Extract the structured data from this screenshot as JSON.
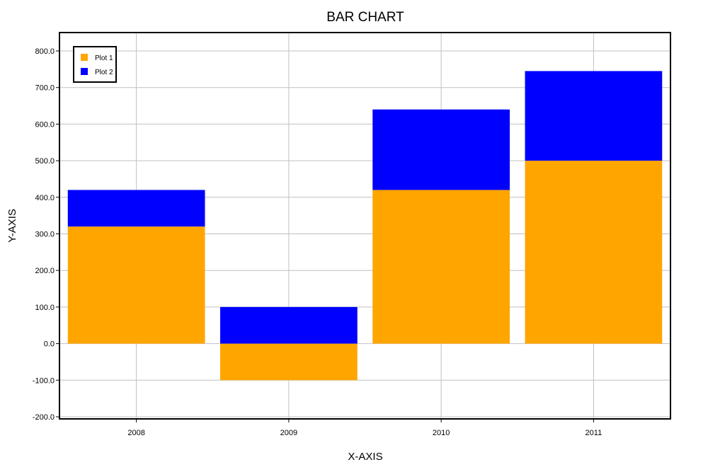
{
  "chart_data": {
    "type": "bar",
    "stacked": true,
    "title": "BAR CHART",
    "xlabel": "X-AXIS",
    "ylabel": "Y-AXIS",
    "categories": [
      "2008",
      "2009",
      "2010",
      "2011"
    ],
    "series": [
      {
        "name": "Plot 1",
        "color": "#ffa500",
        "values": [
          320,
          -100,
          420,
          500
        ]
      },
      {
        "name": "Plot 2",
        "color": "#0000ff",
        "values": [
          100,
          100,
          220,
          245
        ]
      }
    ],
    "ylim": [
      -200,
      800
    ],
    "yticks": [
      -200,
      -100,
      0,
      100,
      200,
      300,
      400,
      500,
      600,
      700,
      800
    ],
    "ytick_labels": [
      "-200.0",
      "-100.0",
      "0.0",
      "100.0",
      "200.0",
      "300.0",
      "400.0",
      "500.0",
      "600.0",
      "700.0",
      "800.0"
    ],
    "grid": true,
    "legend": "top-left"
  }
}
